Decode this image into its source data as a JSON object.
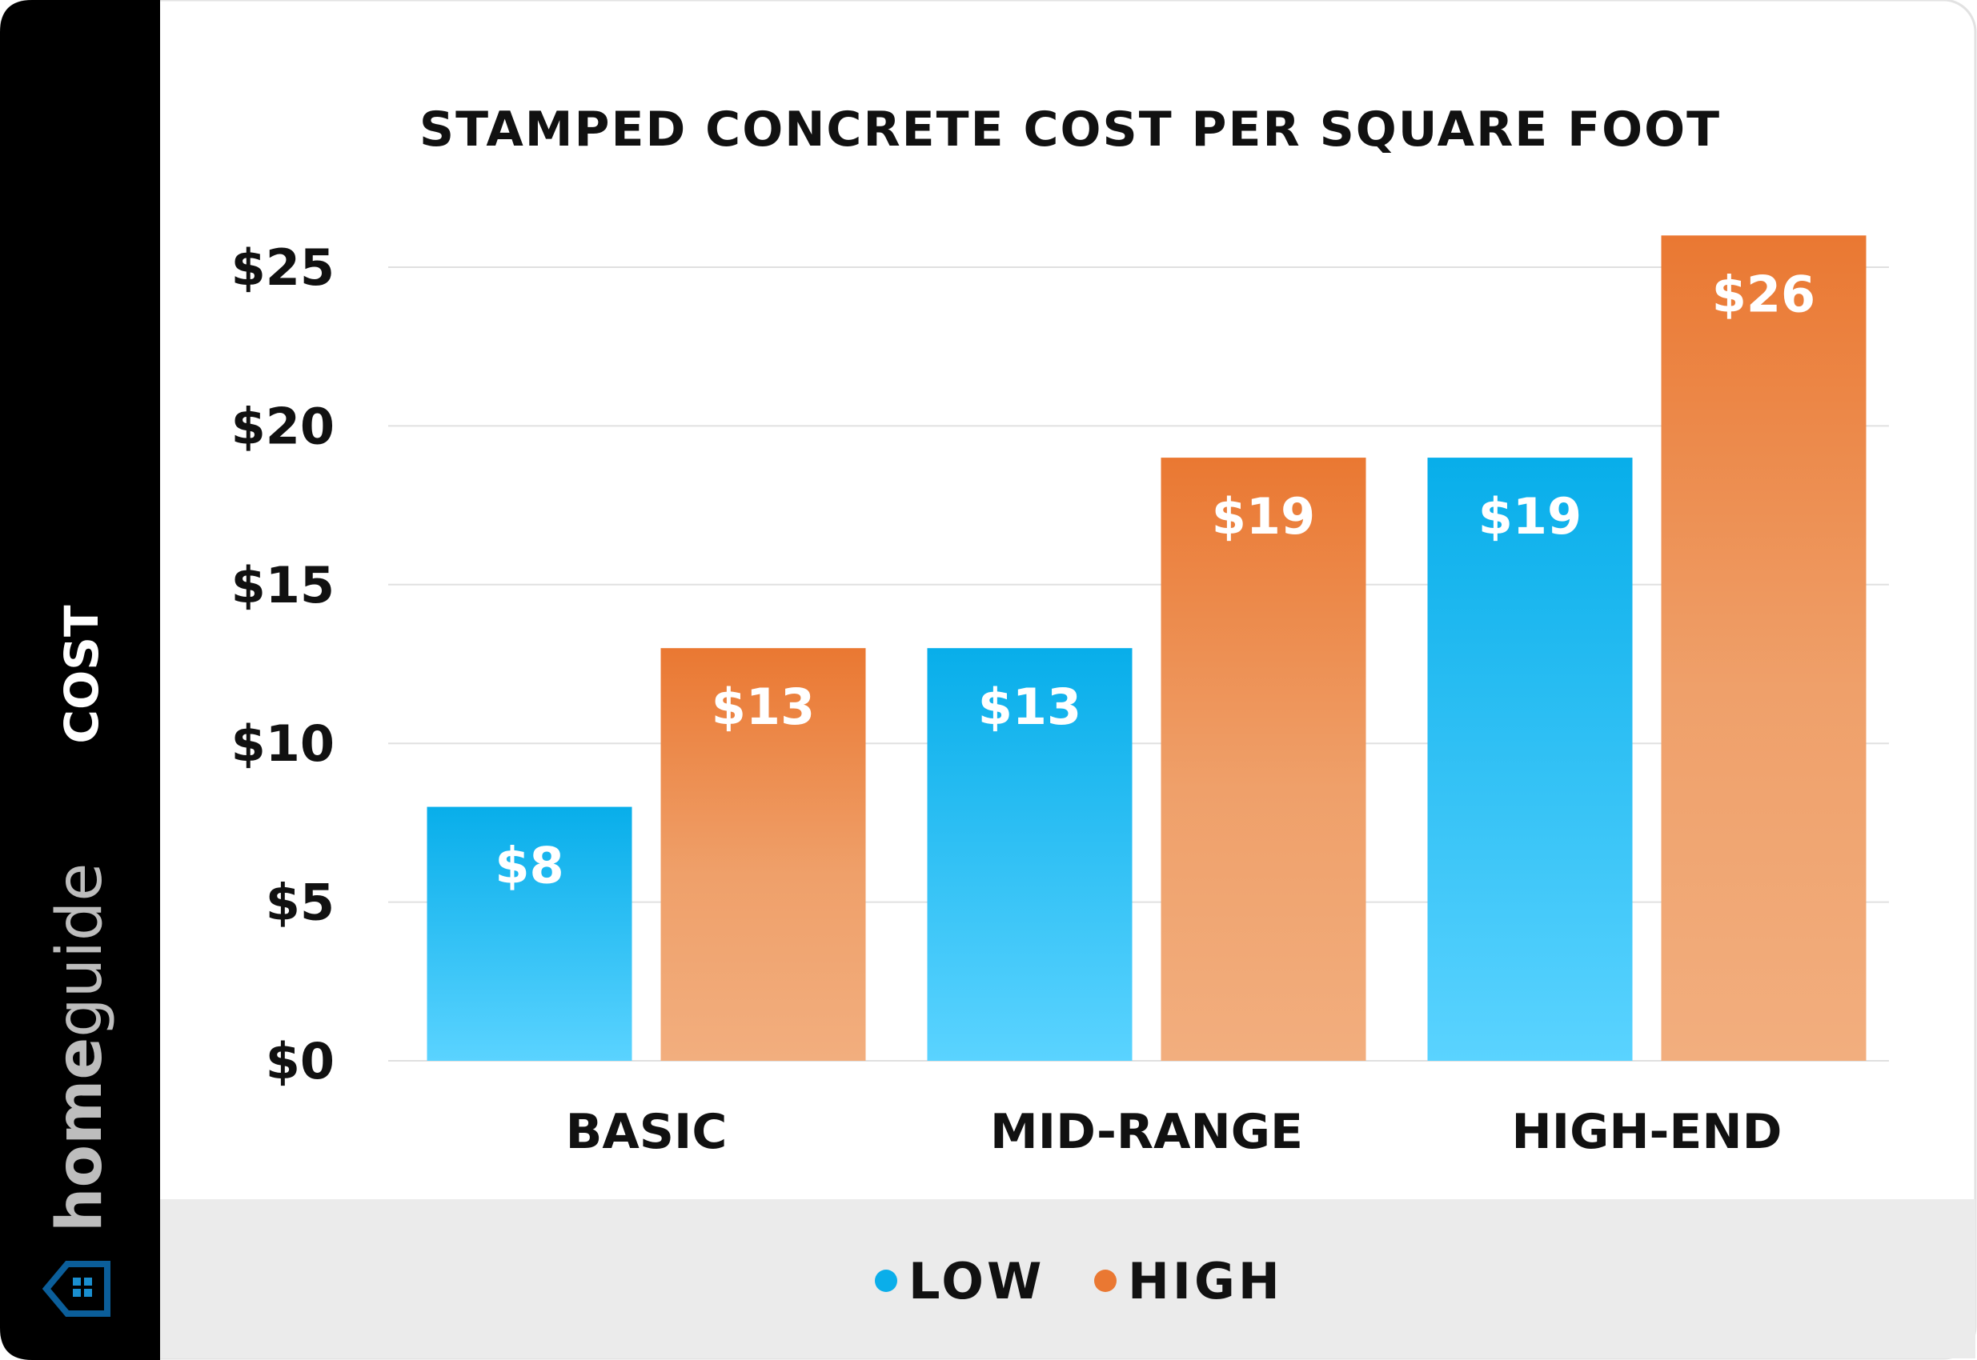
{
  "brand": {
    "logo_text_light": "home",
    "logo_text_rest": "guide",
    "logo_color": "#0b5e9a"
  },
  "chart_data": {
    "type": "bar",
    "title": "STAMPED CONCRETE COST PER SQUARE FOOT",
    "xlabel": "",
    "ylabel": "COST",
    "categories": [
      "BASIC",
      "MID-RANGE",
      "HIGH-END"
    ],
    "series": [
      {
        "name": "LOW",
        "values": [
          8,
          13,
          19
        ],
        "labels": [
          "$8",
          "$13",
          "$19"
        ],
        "color": "#0aaeea"
      },
      {
        "name": "HIGH",
        "values": [
          13,
          19,
          26
        ],
        "labels": [
          "$13",
          "$19",
          "$26"
        ],
        "color": "#ea7832"
      }
    ],
    "ylim": [
      0,
      25
    ],
    "yticks": [
      0,
      5,
      10,
      15,
      20,
      25
    ],
    "ytick_labels": [
      "$0",
      "$5",
      "$10",
      "$15",
      "$20",
      "$25"
    ],
    "grid": true,
    "legend_position": "bottom"
  }
}
